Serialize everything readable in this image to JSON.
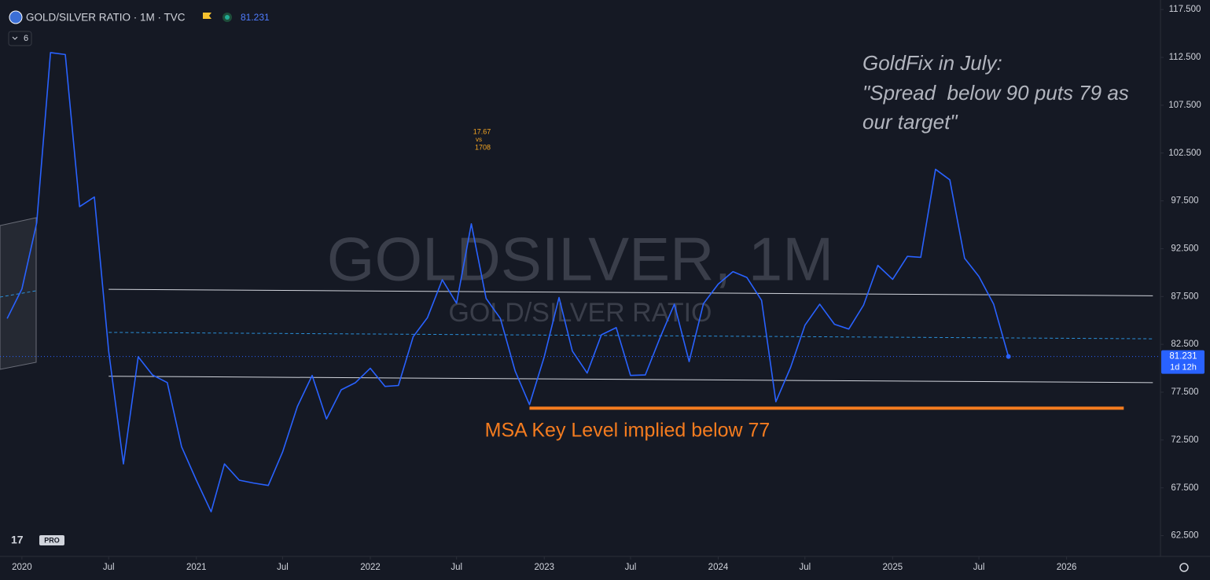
{
  "chart_data": {
    "type": "line",
    "title": "GOLD/SILVER RATIO · 1M · TVC",
    "indicator_count": "6",
    "watermark": "GOLDSILVER, 1M",
    "watermark_subtitle": "GOLD/SILVER RATIO",
    "countdown": "1d 12h",
    "annotations": [
      "GoldFix in July:",
      "\"Spread  below 90 puts 79 as",
      "our target\""
    ],
    "key_level_label": "MSA Key Level implied below 77",
    "small_note": [
      "17.67",
      "vs",
      "1708"
    ],
    "color": "#2962ff",
    "grid": false,
    "xlim": [
      "2019-11-16",
      "2026-07-17"
    ],
    "ylim": [
      60.33,
      118.5
    ],
    "yticks": [
      {
        "value": 62.5,
        "label": "62.500"
      },
      {
        "value": 67.5,
        "label": "67.500"
      },
      {
        "value": 72.5,
        "label": "72.500"
      },
      {
        "value": 77.5,
        "label": "77.500"
      },
      {
        "value": 82.5,
        "label": "82.500"
      },
      {
        "value": 87.5,
        "label": "87.500"
      },
      {
        "value": 92.5,
        "label": "92.500"
      },
      {
        "value": 97.5,
        "label": "97.500"
      },
      {
        "value": 102.5,
        "label": "102.500"
      },
      {
        "value": 107.5,
        "label": "107.500"
      },
      {
        "value": 112.5,
        "label": "112.500"
      },
      {
        "value": 117.5,
        "label": "117.500"
      }
    ],
    "xticks": [
      {
        "value": "2020-01",
        "label": "2020"
      },
      {
        "value": "2020-07",
        "label": "Jul"
      },
      {
        "value": "2021-01",
        "label": "2021"
      },
      {
        "value": "2021-07",
        "label": "Jul"
      },
      {
        "value": "2022-01",
        "label": "2022"
      },
      {
        "value": "2022-07",
        "label": "Jul"
      },
      {
        "value": "2023-01",
        "label": "2023"
      },
      {
        "value": "2023-07",
        "label": "Jul"
      },
      {
        "value": "2024-01",
        "label": "2024"
      },
      {
        "value": "2024-07",
        "label": "Jul"
      },
      {
        "value": "2025-01",
        "label": "2025"
      },
      {
        "value": "2025-07",
        "label": "Jul"
      },
      {
        "value": "2026-01",
        "label": "2026"
      }
    ],
    "x": [
      "2019-12",
      "2020-01",
      "2020-02",
      "2020-03",
      "2020-04",
      "2020-05",
      "2020-06",
      "2020-07",
      "2020-08",
      "2020-09",
      "2020-10",
      "2020-11",
      "2020-12",
      "2021-01",
      "2021-02",
      "2021-03",
      "2021-04",
      "2021-05",
      "2021-06",
      "2021-07",
      "2021-08",
      "2021-09",
      "2021-10",
      "2021-11",
      "2021-12",
      "2022-01",
      "2022-02",
      "2022-03",
      "2022-04",
      "2022-05",
      "2022-06",
      "2022-07",
      "2022-08",
      "2022-09",
      "2022-10",
      "2022-11",
      "2022-12",
      "2023-01",
      "2023-02",
      "2023-03",
      "2023-04",
      "2023-05",
      "2023-06",
      "2023-07",
      "2023-08",
      "2023-09",
      "2023-10",
      "2023-11",
      "2023-12",
      "2024-01",
      "2024-02",
      "2024-03",
      "2024-04",
      "2024-05",
      "2024-06",
      "2024-07",
      "2024-08",
      "2024-09",
      "2024-10",
      "2024-11",
      "2024-12",
      "2025-01",
      "2025-02",
      "2025-03",
      "2025-04",
      "2025-05",
      "2025-06",
      "2025-07",
      "2025-08",
      "2025-09"
    ],
    "values": [
      85.2,
      88.3,
      95.2,
      113,
      112.8,
      96.9,
      97.9,
      81.8,
      70,
      81.2,
      79.3,
      78.5,
      71.8,
      68.3,
      65,
      70,
      68.3,
      68,
      67.75,
      71.25,
      76,
      79.25,
      74.7,
      77.75,
      78.5,
      80,
      78.1,
      78.2,
      83.3,
      85.3,
      89.25,
      86.8,
      95.1,
      87.3,
      85.2,
      79.7,
      76.2,
      81.2,
      87.4,
      81.8,
      79.5,
      83.5,
      84.25,
      79.25,
      79.3,
      83.2,
      86.7,
      80.7,
      86.75,
      88.8,
      90.1,
      89.5,
      87.1,
      76.5,
      80.1,
      84.5,
      86.7,
      84.6,
      84.1,
      86.6,
      90.75,
      89.3,
      91.7,
      91.6,
      100.8,
      99.7,
      91.5,
      89.6,
      86.7,
      81.231
    ],
    "trendlines": [
      {
        "x": [
          "2020-07",
          "2026-07"
        ],
        "y": [
          88.25,
          87.58
        ],
        "color": "#d1d4dc",
        "dash": false,
        "width": 1
      },
      {
        "x": [
          "2020-07",
          "2026-07"
        ],
        "y": [
          79.17,
          78.5
        ],
        "color": "#d1d4dc",
        "dash": false,
        "width": 1
      },
      {
        "x": [
          "2020-07",
          "2026-07"
        ],
        "y": [
          83.75,
          83.08
        ],
        "color": "#2a8fd8",
        "dash": true,
        "width": 1
      },
      {
        "x": [
          "2022-12",
          "2026-05"
        ],
        "y": [
          75.83,
          75.83
        ],
        "color": "#f57c1f",
        "dash": false,
        "width": 4
      }
    ]
  }
}
